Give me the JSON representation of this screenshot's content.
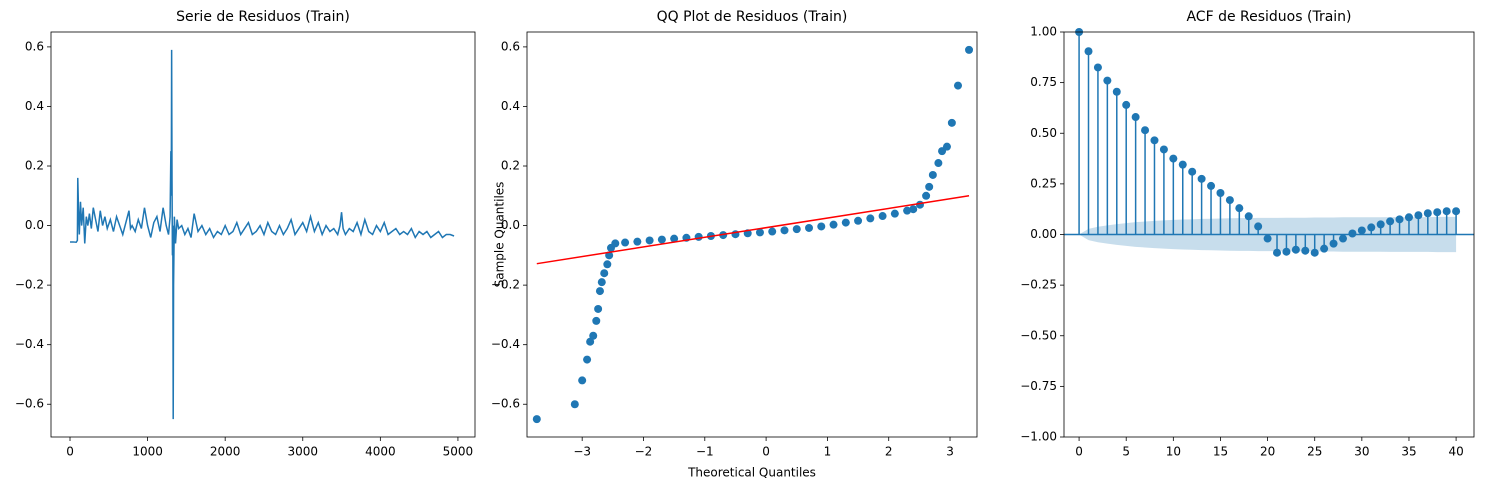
{
  "chart_data": [
    {
      "type": "line",
      "title": "Serie de Residuos (Train)",
      "color": "#1f77b4",
      "x": [
        0,
        40,
        80,
        95,
        100,
        110,
        120,
        135,
        150,
        170,
        190,
        210,
        230,
        250,
        275,
        300,
        330,
        360,
        390,
        420,
        450,
        480,
        520,
        560,
        600,
        640,
        680,
        720,
        760,
        780,
        800,
        840,
        880,
        920,
        960,
        1000,
        1040,
        1080,
        1120,
        1160,
        1200,
        1240,
        1270,
        1290,
        1300,
        1305,
        1310,
        1315,
        1320,
        1325,
        1330,
        1335,
        1345,
        1360,
        1380,
        1400,
        1440,
        1480,
        1520,
        1560,
        1600,
        1650,
        1700,
        1750,
        1800,
        1850,
        1900,
        1950,
        2000,
        2050,
        2100,
        2150,
        2200,
        2250,
        2300,
        2350,
        2400,
        2450,
        2500,
        2550,
        2600,
        2650,
        2700,
        2750,
        2800,
        2850,
        2900,
        2950,
        3000,
        3050,
        3100,
        3150,
        3200,
        3250,
        3300,
        3350,
        3400,
        3450,
        3480,
        3500,
        3520,
        3550,
        3600,
        3650,
        3700,
        3750,
        3800,
        3850,
        3900,
        3950,
        4000,
        4050,
        4100,
        4150,
        4200,
        4250,
        4300,
        4350,
        4400,
        4450,
        4500,
        4550,
        4600,
        4650,
        4700,
        4750,
        4800,
        4850,
        4900,
        4950
      ],
      "values": [
        -0.055,
        -0.055,
        -0.056,
        -0.05,
        0.16,
        0.05,
        -0.03,
        0.08,
        0.0,
        0.06,
        -0.06,
        0.03,
        0.0,
        0.04,
        -0.01,
        0.06,
        0.02,
        -0.02,
        0.05,
        0.0,
        0.03,
        -0.01,
        0.02,
        -0.02,
        0.03,
        0.0,
        -0.03,
        0.01,
        0.05,
        -0.01,
        0.0,
        -0.02,
        0.02,
        -0.01,
        0.06,
        0.0,
        -0.04,
        0.01,
        0.03,
        -0.02,
        0.06,
        0.0,
        -0.03,
        0.03,
        0.25,
        0.1,
        0.59,
        0.15,
        -0.1,
        0.0,
        -0.65,
        -0.2,
        0.03,
        -0.06,
        0.02,
        -0.01,
        0.0,
        -0.03,
        -0.01,
        -0.04,
        0.04,
        -0.02,
        0.0,
        -0.03,
        -0.01,
        -0.04,
        -0.02,
        -0.03,
        0.0,
        -0.03,
        -0.02,
        0.01,
        -0.03,
        -0.01,
        0.01,
        -0.03,
        -0.02,
        0.0,
        -0.03,
        0.01,
        -0.02,
        -0.03,
        0.0,
        -0.03,
        -0.01,
        0.02,
        -0.03,
        -0.01,
        0.01,
        -0.02,
        0.03,
        -0.02,
        0.01,
        -0.03,
        0.0,
        -0.02,
        -0.01,
        -0.03,
        0.0,
        0.045,
        -0.01,
        -0.03,
        -0.01,
        -0.02,
        0.01,
        -0.03,
        0.02,
        -0.02,
        -0.03,
        0.0,
        -0.02,
        0.01,
        -0.03,
        -0.02,
        -0.01,
        -0.03,
        -0.02,
        -0.03,
        -0.01,
        -0.04,
        -0.02,
        -0.03,
        -0.02,
        -0.04,
        -0.03,
        -0.02,
        -0.04,
        -0.03,
        -0.03,
        -0.035
      ],
      "xlim": [
        -245,
        5220
      ],
      "xticks": [
        0,
        1000,
        2000,
        3000,
        4000,
        5000
      ],
      "ylim": [
        -0.71,
        0.65
      ],
      "yticks": [
        {
          "value": -0.6,
          "label": "−0.6"
        },
        {
          "value": -0.4,
          "label": "−0.4"
        },
        {
          "value": -0.2,
          "label": "−0.2"
        },
        {
          "value": 0,
          "label": "0.0"
        },
        0.2,
        0.4,
        0.6
      ]
    },
    {
      "type": "scatter",
      "title": "QQ Plot de Residuos (Train)",
      "x_label": "Theoretical Quantiles",
      "y_label": "Sample Quantiles",
      "series": [
        {
          "type": "scatter",
          "color": "#1f77b4",
          "x": [
            -3.74,
            -3.12,
            -3.0,
            -2.92,
            -2.87,
            -2.82,
            -2.77,
            -2.74,
            -2.71,
            -2.68,
            -2.64,
            -2.59,
            -2.56,
            -2.53,
            -2.46,
            -2.3,
            -2.1,
            -1.9,
            -1.7,
            -1.5,
            -1.3,
            -1.1,
            -0.9,
            -0.7,
            -0.5,
            -0.3,
            -0.1,
            0.1,
            0.3,
            0.5,
            0.7,
            0.9,
            1.1,
            1.3,
            1.5,
            1.7,
            1.9,
            2.1,
            2.3,
            2.4,
            2.51,
            2.61,
            2.66,
            2.72,
            2.81,
            2.87,
            2.95,
            3.03,
            3.13,
            3.31
          ],
          "values": [
            -0.65,
            -0.6,
            -0.52,
            -0.45,
            -0.39,
            -0.37,
            -0.32,
            -0.28,
            -0.22,
            -0.19,
            -0.16,
            -0.13,
            -0.1,
            -0.075,
            -0.06,
            -0.057,
            -0.054,
            -0.05,
            -0.047,
            -0.044,
            -0.041,
            -0.038,
            -0.035,
            -0.032,
            -0.029,
            -0.026,
            -0.023,
            -0.02,
            -0.016,
            -0.012,
            -0.008,
            -0.003,
            0.003,
            0.01,
            0.016,
            0.024,
            0.032,
            0.04,
            0.05,
            0.055,
            0.07,
            0.1,
            0.13,
            0.17,
            0.21,
            0.25,
            0.265,
            0.345,
            0.47,
            0.59
          ]
        },
        {
          "type": "line",
          "color": "#ff0000",
          "x": [
            -3.74,
            3.31
          ],
          "values": [
            -0.128,
            0.1
          ]
        }
      ],
      "xlim": [
        -3.9,
        3.44
      ],
      "xticks": [
        {
          "value": -3,
          "label": "−3"
        },
        {
          "value": -2,
          "label": "−2"
        },
        {
          "value": -1,
          "label": "−1"
        },
        0,
        1,
        2,
        3
      ],
      "ylim": [
        -0.71,
        0.65
      ],
      "yticks": [
        {
          "value": -0.6,
          "label": "−0.6"
        },
        {
          "value": -0.4,
          "label": "−0.4"
        },
        {
          "value": -0.2,
          "label": "−0.2"
        },
        {
          "value": 0,
          "label": "0.0"
        },
        0.2,
        0.4,
        0.6
      ]
    },
    {
      "type": "stem",
      "title": "ACF de Residuos (Train)",
      "color": "#1f77b4",
      "band_color": "#1f77b4",
      "x": [
        0,
        1,
        2,
        3,
        4,
        5,
        6,
        7,
        8,
        9,
        10,
        11,
        12,
        13,
        14,
        15,
        16,
        17,
        18,
        19,
        20,
        21,
        22,
        23,
        24,
        25,
        26,
        27,
        28,
        29,
        30,
        31,
        32,
        33,
        34,
        35,
        36,
        37,
        38,
        39,
        40
      ],
      "values": [
        1.0,
        0.905,
        0.825,
        0.76,
        0.705,
        0.64,
        0.58,
        0.515,
        0.465,
        0.42,
        0.375,
        0.345,
        0.31,
        0.275,
        0.24,
        0.205,
        0.17,
        0.13,
        0.09,
        0.04,
        -0.02,
        -0.09,
        -0.085,
        -0.075,
        -0.08,
        -0.09,
        -0.07,
        -0.045,
        -0.02,
        0.005,
        0.02,
        0.035,
        0.05,
        0.065,
        0.075,
        0.085,
        0.095,
        0.105,
        0.11,
        0.115,
        0.115
      ],
      "band": [
        0,
        0.028,
        0.038,
        0.045,
        0.051,
        0.056,
        0.061,
        0.064,
        0.067,
        0.07,
        0.072,
        0.074,
        0.075,
        0.077,
        0.078,
        0.079,
        0.08,
        0.081,
        0.081,
        0.082,
        0.082,
        0.082,
        0.083,
        0.083,
        0.083,
        0.084,
        0.084,
        0.084,
        0.085,
        0.085,
        0.085,
        0.085,
        0.085,
        0.086,
        0.086,
        0.086,
        0.086,
        0.086,
        0.087,
        0.087,
        0.087
      ],
      "xlim": [
        -1.6,
        41.9
      ],
      "xticks": [
        0,
        5,
        10,
        15,
        20,
        25,
        30,
        35,
        40
      ],
      "ylim": [
        -1,
        1
      ],
      "yticks": [
        {
          "value": -1,
          "label": "−1.00"
        },
        {
          "value": -0.75,
          "label": "−0.75"
        },
        {
          "value": -0.5,
          "label": "−0.50"
        },
        {
          "value": -0.25,
          "label": "−0.25"
        },
        {
          "value": 0,
          "label": "0.00"
        },
        {
          "value": 0.25,
          "label": "0.25"
        },
        {
          "value": 0.5,
          "label": "0.50"
        },
        {
          "value": 0.75,
          "label": "0.75"
        },
        {
          "value": 1,
          "label": "1.00"
        }
      ]
    }
  ]
}
